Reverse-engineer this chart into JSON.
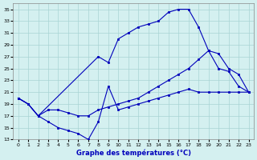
{
  "title": "Graphe des températures (°C)",
  "bg_color": "#d4f0f0",
  "grid_color": "#a8d4d4",
  "line_color": "#0000bb",
  "ylim_min": 13,
  "ylim_max": 36,
  "yticks": [
    13,
    15,
    17,
    19,
    21,
    23,
    25,
    27,
    29,
    31,
    33,
    35
  ],
  "xlim_min": -0.5,
  "xlim_max": 23.5,
  "xticks": [
    0,
    1,
    2,
    3,
    4,
    5,
    6,
    7,
    8,
    9,
    10,
    11,
    12,
    13,
    14,
    15,
    16,
    17,
    18,
    19,
    20,
    21,
    22,
    23
  ],
  "series": [
    {
      "x": [
        0,
        1,
        2,
        8,
        9,
        10,
        11,
        12,
        13,
        14,
        15,
        16,
        17,
        18,
        19,
        20,
        21,
        22,
        23
      ],
      "y": [
        20,
        19,
        17,
        27,
        26,
        30,
        31,
        32,
        32.5,
        33,
        34.5,
        35,
        35,
        32,
        28,
        25,
        24.5,
        22,
        21
      ]
    },
    {
      "x": [
        0,
        1,
        2,
        3,
        4,
        5,
        6,
        7,
        8,
        9,
        10,
        11,
        12,
        13,
        14,
        15,
        16,
        17,
        18,
        19,
        20,
        21,
        22,
        23
      ],
      "y": [
        20,
        19,
        17,
        18,
        18,
        17.5,
        17,
        17,
        18,
        18.5,
        19,
        19.5,
        20,
        21,
        22,
        23,
        24,
        25,
        26.5,
        28,
        27.5,
        25,
        24,
        21
      ]
    },
    {
      "x": [
        0,
        1,
        2,
        3,
        4,
        5,
        6,
        7,
        8,
        9,
        10,
        11,
        12,
        13,
        14,
        15,
        16,
        17,
        18,
        19,
        20,
        21,
        22,
        23
      ],
      "y": [
        20,
        19,
        17,
        16,
        15,
        14.5,
        14,
        13,
        16,
        22,
        18,
        18.5,
        19,
        19.5,
        20,
        20.5,
        21,
        21.5,
        21,
        21,
        21,
        21,
        21,
        21
      ]
    }
  ]
}
